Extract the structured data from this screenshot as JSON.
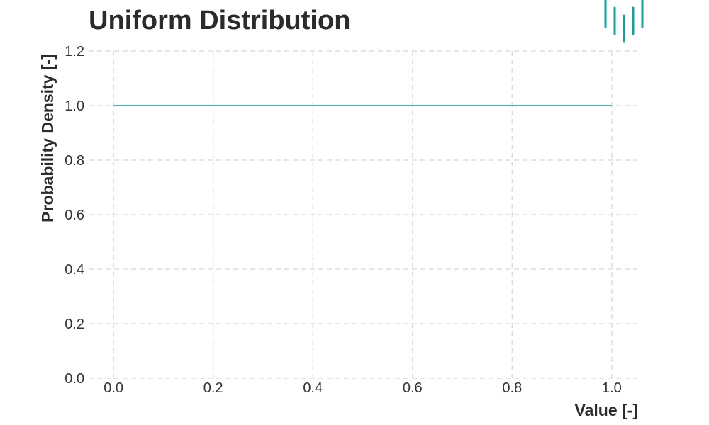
{
  "chart_data": {
    "type": "line",
    "title": "Uniform Distribution",
    "xlabel": "Value [-]",
    "ylabel": "Probability Density [-]",
    "xlim": [
      -0.05,
      1.05
    ],
    "ylim": [
      0.0,
      1.2
    ],
    "x_ticks": [
      0.0,
      0.2,
      0.4,
      0.6,
      0.8,
      1.0
    ],
    "x_tick_labels": [
      "0.0",
      "0.2",
      "0.4",
      "0.6",
      "0.8",
      "1.0"
    ],
    "y_ticks": [
      0.0,
      0.2,
      0.4,
      0.6,
      0.8,
      1.0,
      1.2
    ],
    "y_tick_labels": [
      "0.0",
      "0.2",
      "0.4",
      "0.6",
      "0.8",
      "1.0",
      "1.2"
    ],
    "grid": true,
    "series": [
      {
        "x": [
          0.0,
          1.0
        ],
        "y": [
          1.0,
          1.0
        ],
        "color": "#1a9e97"
      }
    ]
  },
  "logo": {
    "icon": "bar-logo-icon",
    "color": "#1a9e97"
  }
}
